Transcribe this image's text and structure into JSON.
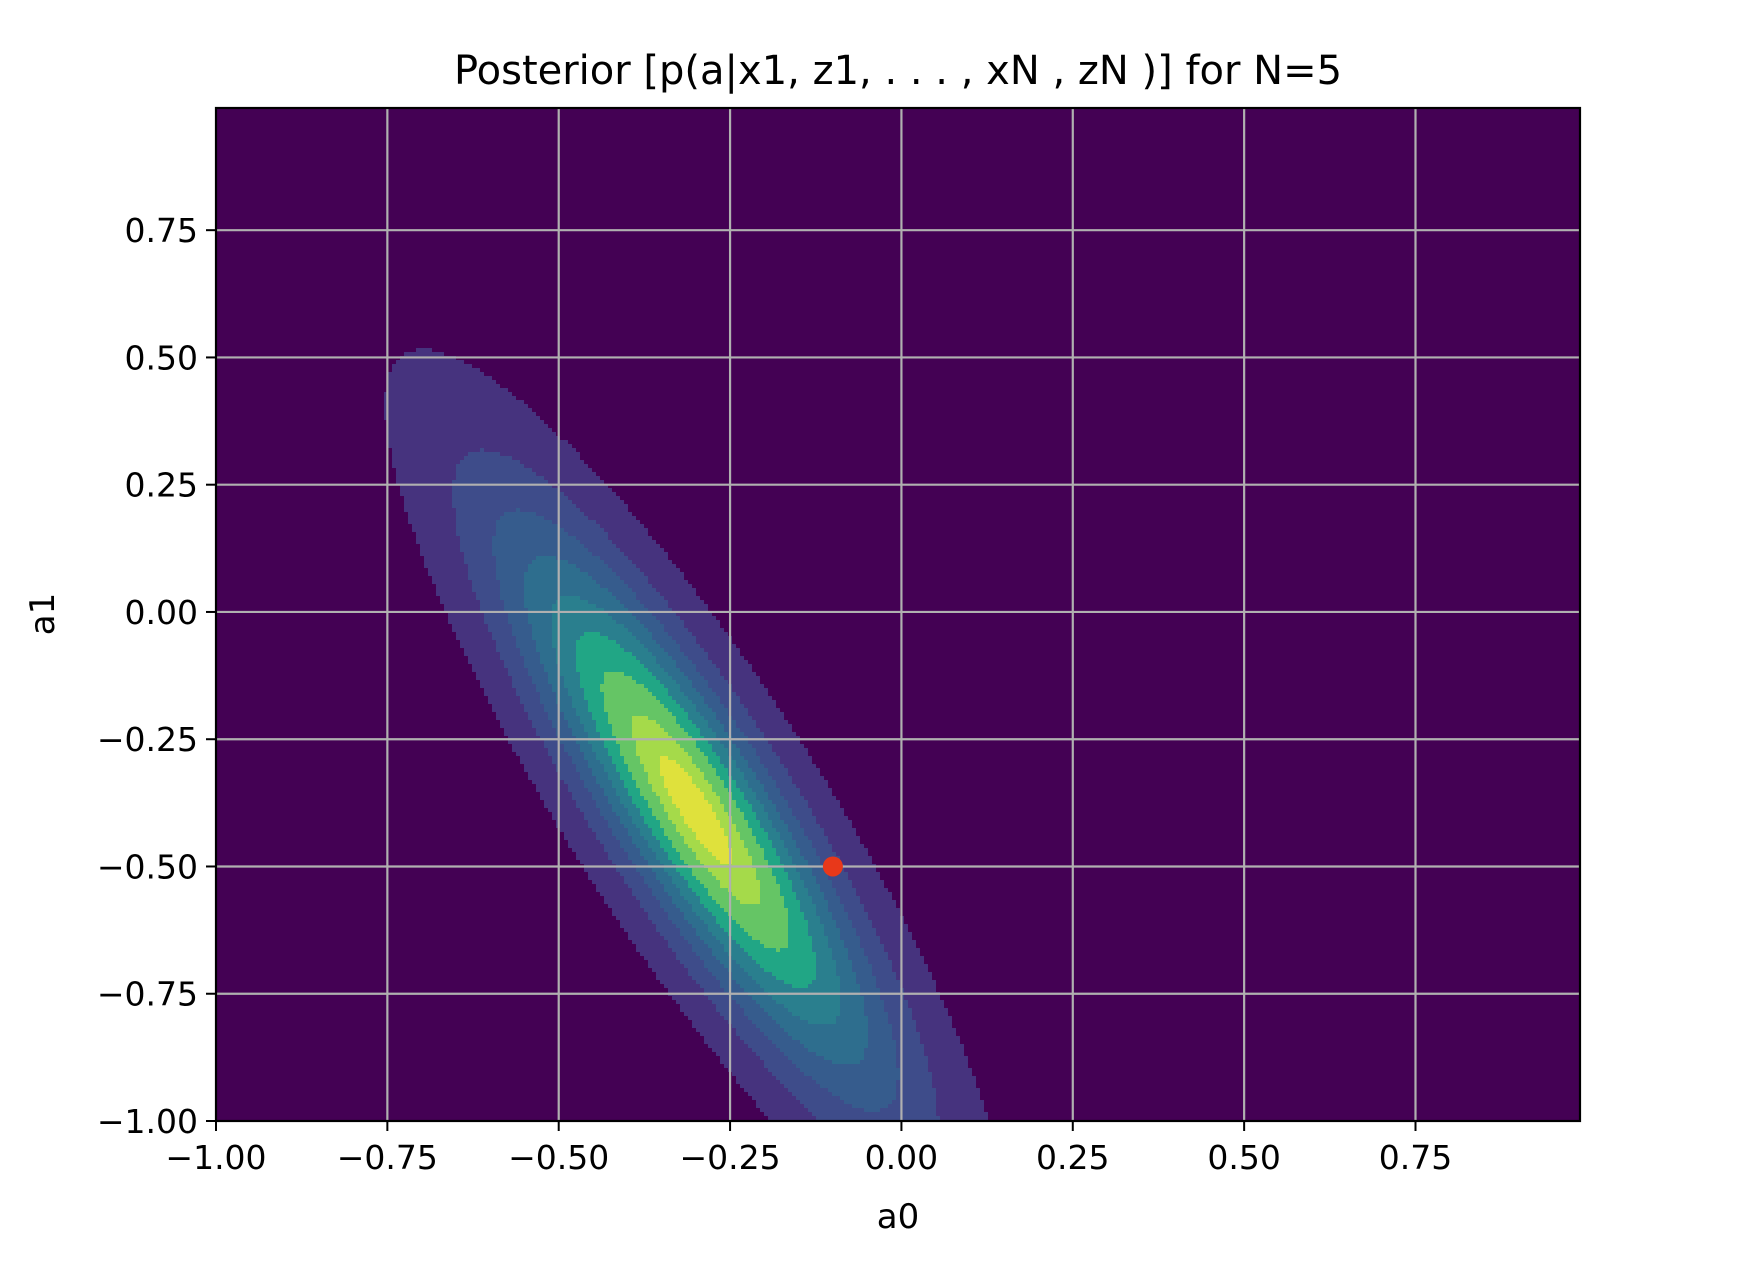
{
  "chart_data": {
    "type": "contour",
    "title": "Posterior [p(a|x1, z1, . . . , xN , zN )] for N=5",
    "xlabel": "a0",
    "ylabel": "a1",
    "xlim": [
      -1.0,
      1.0
    ],
    "ylim": [
      -1.0,
      1.0
    ],
    "xticks": [
      -1.0,
      -0.75,
      -0.5,
      -0.25,
      0.0,
      0.25,
      0.5,
      0.75
    ],
    "yticks": [
      -1.0,
      -0.75,
      -0.5,
      -0.25,
      0.0,
      0.25,
      0.5,
      0.75
    ],
    "xtick_labels": [
      "−1.00",
      "−0.75",
      "−0.50",
      "−0.25",
      "0.00",
      "0.25",
      "0.50",
      "0.75"
    ],
    "ytick_labels": [
      "−1.00",
      "−0.75",
      "−0.50",
      "−0.25",
      "0.00",
      "0.25",
      "0.50",
      "0.75"
    ],
    "grid": true,
    "colormap": "viridis",
    "background_color": "#440154",
    "contour": {
      "center": [
        -0.3,
        -0.39
      ],
      "sigma_a0": 0.185,
      "sigma_a1": 0.37,
      "correlation": -0.88,
      "levels": [
        {
          "threshold": 0.05,
          "color": "#46337e"
        },
        {
          "threshold": 0.16,
          "color": "#3e4c8a"
        },
        {
          "threshold": 0.28,
          "color": "#365c8d"
        },
        {
          "threshold": 0.4,
          "color": "#2e6e8e"
        },
        {
          "threshold": 0.52,
          "color": "#2a7f8e"
        },
        {
          "threshold": 0.64,
          "color": "#21a685"
        },
        {
          "threshold": 0.76,
          "color": "#65c565"
        },
        {
          "threshold": 0.88,
          "color": "#a5da4a"
        },
        {
          "threshold": 0.96,
          "color": "#dfe13c"
        }
      ]
    },
    "marker": {
      "a0": -0.1,
      "a1": -0.5,
      "color": "#e8381a"
    }
  }
}
